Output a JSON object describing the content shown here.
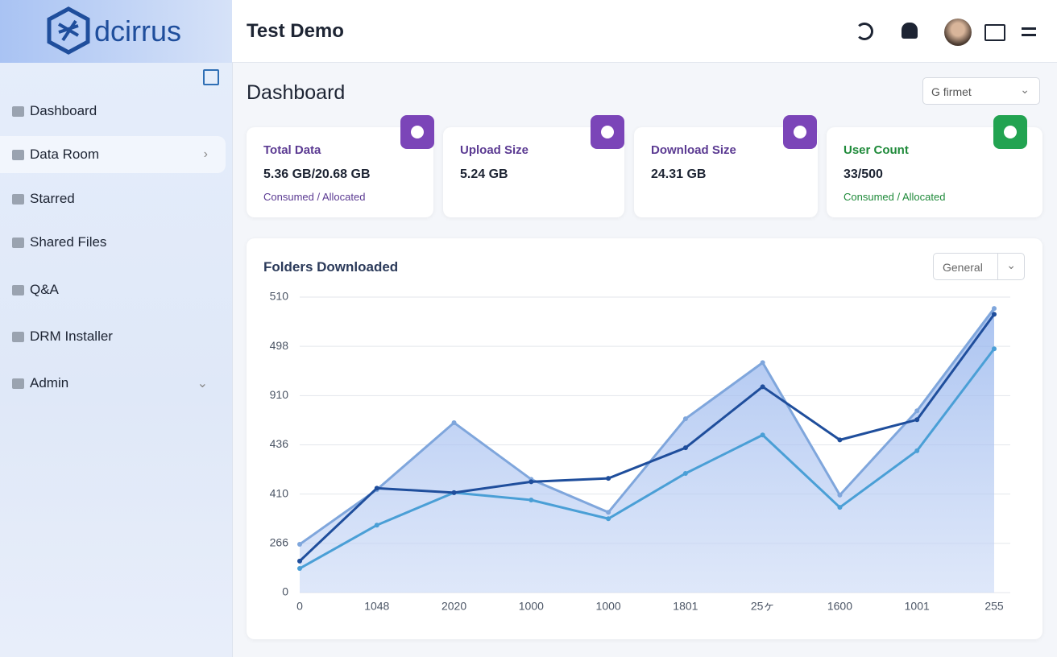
{
  "brand": "dcirrus",
  "header": {
    "title": "Test Demo"
  },
  "nav": [
    "Dashboard",
    "Data Room",
    "Starred",
    "Shared Files",
    "Q&A",
    "DRM Installer",
    "Admin"
  ],
  "page": {
    "title": "Dashboard",
    "filter": "G firmet"
  },
  "cards": [
    {
      "title": "Total Data",
      "value": "5.36 GB/20.68 GB",
      "note": "Consumed / Allocated"
    },
    {
      "title": "Upload Size",
      "value": "5.24 GB"
    },
    {
      "title": "Download Size",
      "value": "24.31 GB"
    },
    {
      "title": "User Count",
      "value": "33/500",
      "note": "Consumed / Allocated"
    }
  ],
  "chart_data": {
    "type": "line",
    "title": "Folders Downloaded",
    "filter": "General",
    "categories": [
      "0",
      "1048",
      "2020",
      "1000",
      "1000",
      "1801",
      "25ヶ",
      "1600",
      "1001",
      "255"
    ],
    "ylim": [
      0,
      6
    ],
    "yticks": [
      {
        "value": 0,
        "label": "0"
      },
      {
        "value": 1,
        "label": "266"
      },
      {
        "value": 2,
        "label": "410"
      },
      {
        "value": 3,
        "label": "436"
      },
      {
        "value": 4,
        "label": "910"
      },
      {
        "value": 5,
        "label": "498"
      },
      {
        "value": 6,
        "label": "510"
      }
    ],
    "grid": true,
    "series": [
      {
        "color": "#7fa6dc",
        "area": true,
        "values": [
          0.98,
          2.09,
          3.45,
          2.3,
          1.63,
          3.53,
          4.67,
          1.98,
          3.69,
          5.77
        ]
      },
      {
        "color": "#4a9fd6",
        "values": [
          0.49,
          1.37,
          2.03,
          1.88,
          1.5,
          2.42,
          3.2,
          1.73,
          2.88,
          4.95
        ]
      },
      {
        "color": "#1f4e9c",
        "values": [
          0.64,
          2.12,
          2.03,
          2.25,
          2.32,
          2.94,
          4.18,
          3.1,
          3.51,
          5.65
        ]
      }
    ]
  }
}
